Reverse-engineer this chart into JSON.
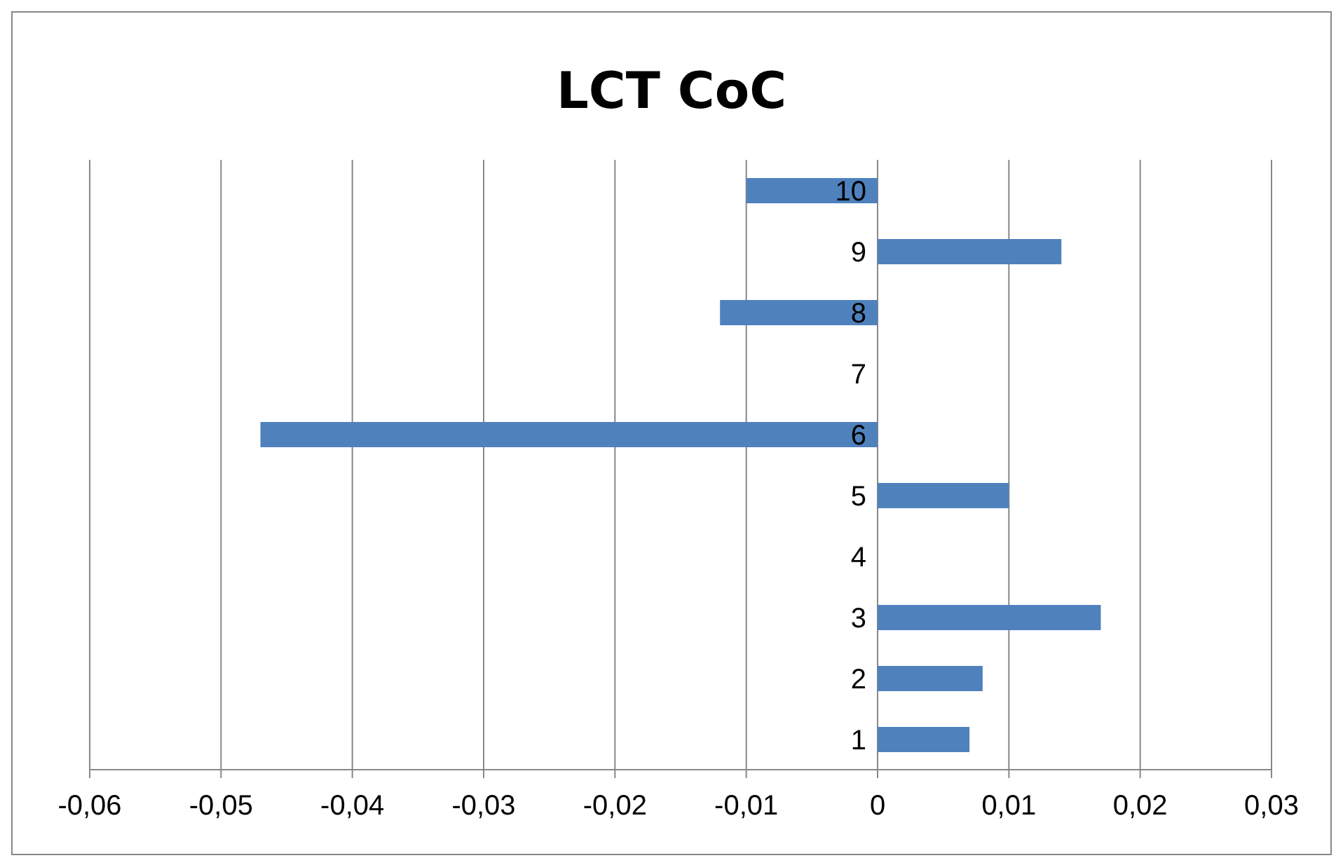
{
  "chart_data": {
    "type": "bar",
    "orientation": "horizontal",
    "title": "LCT CoC",
    "categories": [
      "10",
      "9",
      "8",
      "7",
      "6",
      "5",
      "4",
      "3",
      "2",
      "1"
    ],
    "values": [
      -0.01,
      0.014,
      -0.012,
      0,
      -0.047,
      0.01,
      0,
      0.017,
      0.008,
      0.007
    ],
    "color": "#4f81bd",
    "xlim": [
      -0.06,
      0.03
    ],
    "xticks": [
      {
        "value": -0.06,
        "label": "-0,06"
      },
      {
        "value": -0.05,
        "label": "-0,05"
      },
      {
        "value": -0.04,
        "label": "-0,04"
      },
      {
        "value": -0.03,
        "label": "-0,03"
      },
      {
        "value": -0.02,
        "label": "-0,02"
      },
      {
        "value": -0.01,
        "label": "-0,01"
      },
      {
        "value": 0,
        "label": "0"
      },
      {
        "value": 0.01,
        "label": "0,01"
      },
      {
        "value": 0.02,
        "label": "0,02"
      },
      {
        "value": 0.03,
        "label": "0,03"
      }
    ],
    "grid": "x",
    "legend": false
  }
}
